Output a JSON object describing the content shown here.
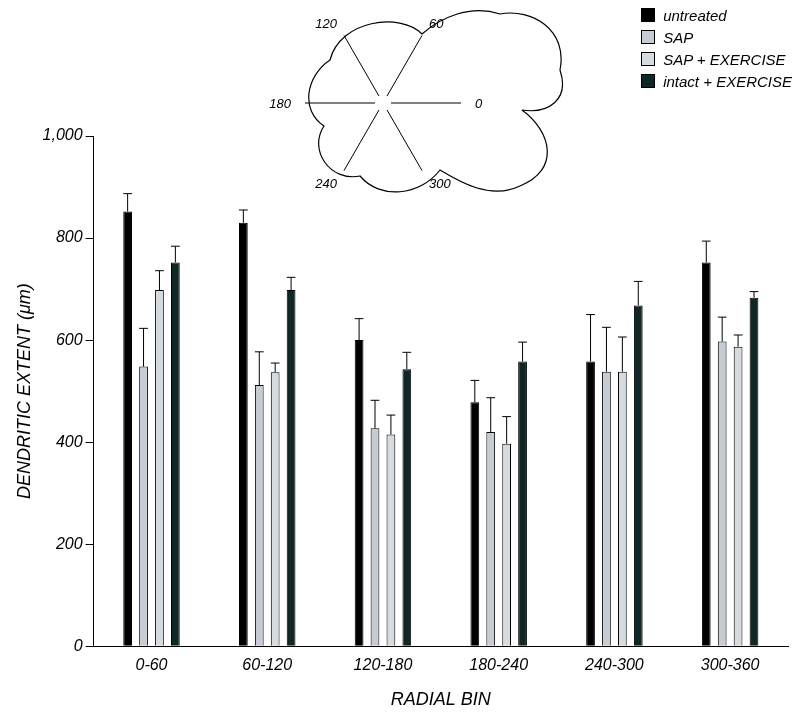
{
  "chart_data": {
    "type": "bar",
    "x_label": "RADIAL BIN",
    "y_label": "DENDRITIC EXTENT (μm)",
    "categories": [
      "0-60",
      "60-120",
      "120-180",
      "180-240",
      "240-300",
      "300-360"
    ],
    "series": [
      {
        "name": "untreated",
        "color": "#000000",
        "values": [
          852,
          830,
          600,
          478,
          558,
          752
        ],
        "errors": [
          35,
          25,
          42,
          43,
          92,
          42
        ]
      },
      {
        "name": "SAP",
        "color": "#c6ccd3",
        "values": [
          548,
          512,
          427,
          420,
          538,
          597
        ],
        "errors": [
          75,
          65,
          55,
          67,
          87,
          48
        ]
      },
      {
        "name": "SAP + EXERCISE",
        "color": "#d6dbe0",
        "values": [
          698,
          537,
          415,
          397,
          538,
          587
        ],
        "errors": [
          38,
          18,
          38,
          53,
          68,
          23
        ]
      },
      {
        "name": "intact + EXERCISE",
        "color": "#0f2727",
        "values": [
          752,
          698,
          543,
          558,
          668,
          683
        ],
        "errors": [
          32,
          25,
          33,
          38,
          47,
          12
        ]
      }
    ],
    "ylim": [
      0,
      1000
    ],
    "yticks": [
      0,
      200,
      400,
      600,
      800,
      1000
    ],
    "grid": false,
    "legend": "top-right",
    "inset": {
      "angles": [
        0,
        60,
        120,
        180,
        240,
        300
      ]
    }
  }
}
